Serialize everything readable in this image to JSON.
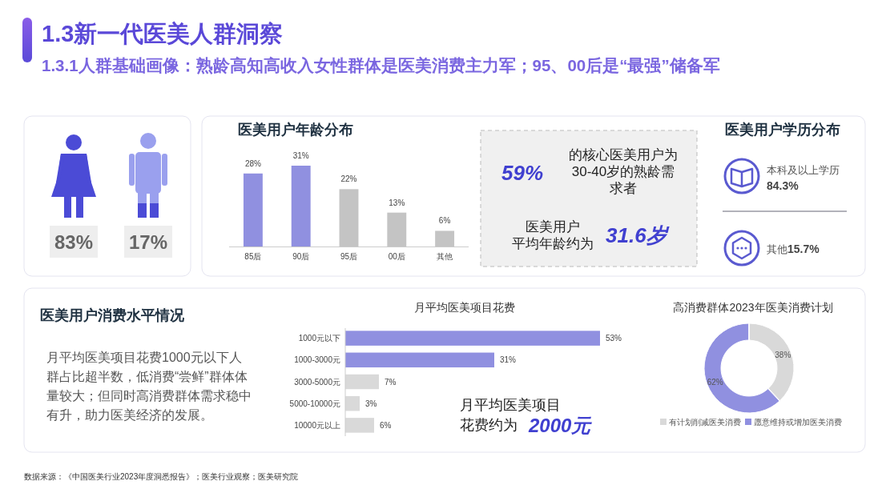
{
  "chart_data": [
    {
      "type": "other",
      "title": "1.3新一代医美人群洞察",
      "subtitle": "1.3.1人群基础画像：熟龄高知高收入女性群体是医美消费主力军；95、00后是“最强”储备军",
      "annotations": [
        "数据来源：《中国医美行业2023年度洞悉报告》；医美行业观察；医美研究院"
      ]
    },
    {
      "type": "other",
      "annotations": [
        "83%",
        "17%"
      ]
    },
    {
      "type": "bar",
      "title": "医美用户年龄分布",
      "categories": [
        "85后",
        "90后",
        "95后",
        "00后",
        "其他"
      ],
      "values": [
        28,
        31,
        22,
        13,
        6
      ],
      "colors": [
        "#9090e0",
        "#9090e0",
        "#c4c4c4",
        "#c4c4c4",
        "#c4c4c4"
      ],
      "value_labels": [
        "28%",
        "31%",
        "22%",
        "13%",
        "6%"
      ]
    },
    {
      "type": "other",
      "annotations": [
        "59%",
        "的核心医美用户为30-40岁的熟龄需求者",
        "医美用户平均年龄约为",
        "31.6岁"
      ]
    },
    {
      "type": "other",
      "title": "医美用户学历分布",
      "annotations": [
        "本科及以上学历",
        "84.3%",
        "其他",
        "15.7%"
      ]
    },
    {
      "type": "other",
      "title": "医美用户消费水平情况",
      "annotations": [
        "月平均医美项目花费1000元以下人群占比超半数，低消费“尝鲜”群体体量较大；但同时高消费群体需求稳中有升，助力医美经济的发展。"
      ]
    },
    {
      "type": "bar",
      "orientation": "horizontal",
      "title": "月平均医美项目花费",
      "categories": [
        "1000元以下",
        "1000-3000元",
        "3000-5000元",
        "5000-10000元",
        "10000元以上"
      ],
      "values": [
        53,
        31,
        7,
        3,
        6
      ],
      "colors": [
        "#9090e0",
        "#9090e0",
        "#d9d9d9",
        "#d9d9d9",
        "#d9d9d9"
      ],
      "value_labels": [
        "53%",
        "31%",
        "7%",
        "3%",
        "6%"
      ],
      "annotations": [
        "月平均医美项目花费约为",
        "2000元"
      ]
    },
    {
      "type": "donut",
      "title": "高消费群体2023年医美消费计划",
      "categories": [
        "有计划削减医美消费",
        "愿意维持或增加医美消费"
      ],
      "values": [
        38,
        62
      ],
      "colors": [
        "#d9d9d9",
        "#9090e0"
      ],
      "value_labels": [
        "38%",
        "62%"
      ],
      "legend": "bottom"
    }
  ]
}
